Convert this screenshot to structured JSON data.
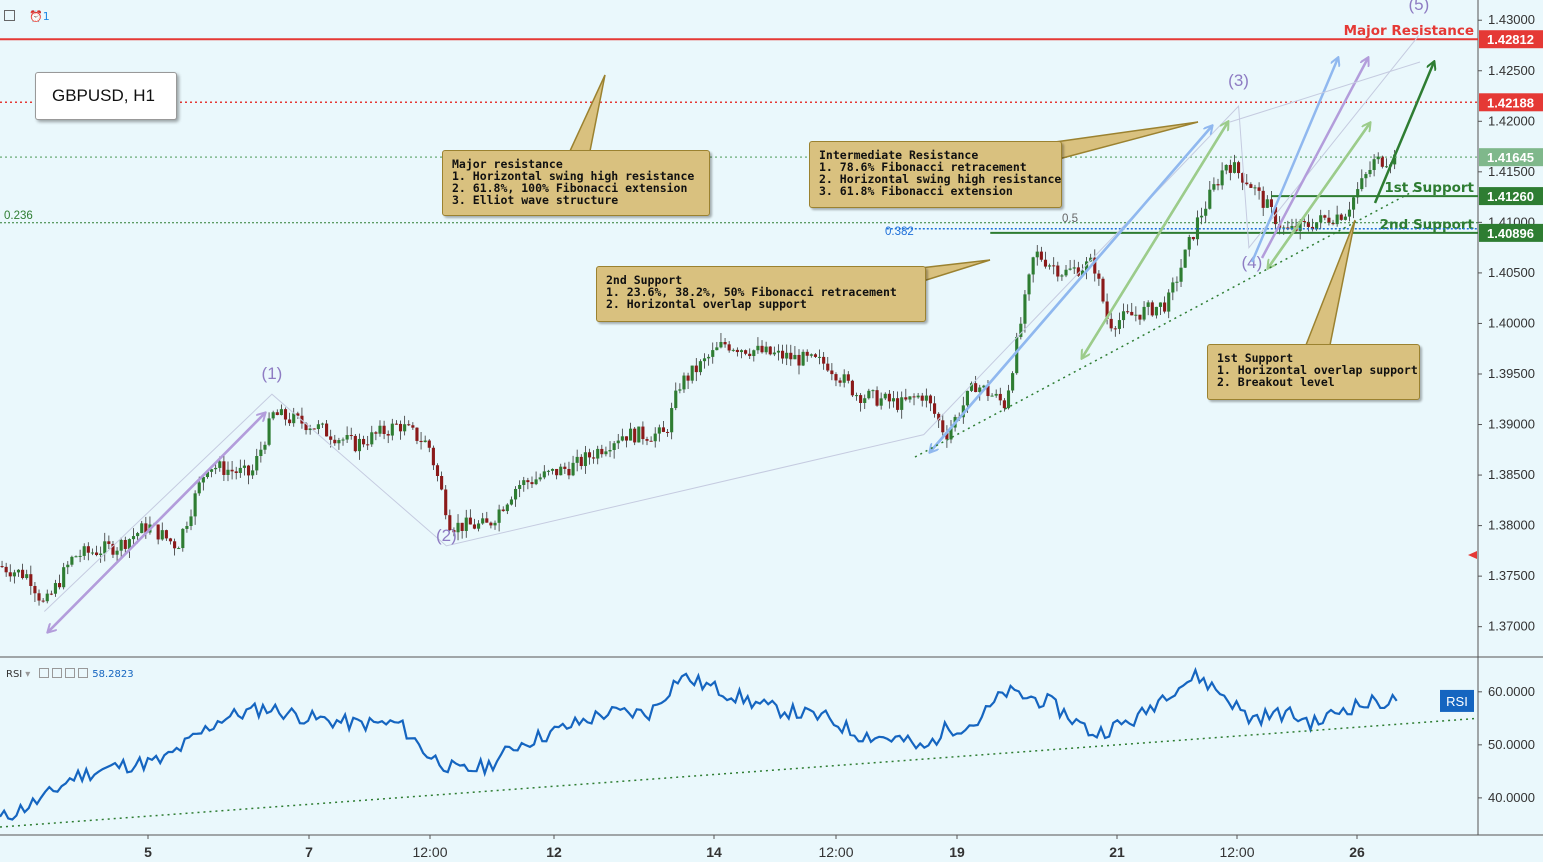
{
  "toolbar": {
    "alert_count": "1"
  },
  "symbol_label": "GBPUSD, H1",
  "notes": {
    "major": "Major resistance\n1. Horizontal swing high resistance\n2. 61.8%, 100% Fibonacci extension\n3. Elliot wave structure",
    "intermediate": "Intermediate Resistance\n1. 78.6% Fibonacci retracement\n2. Horizontal swing high resistance\n3. 61.8% Fibonacci extension",
    "second": "2nd Support\n1. 23.6%, 38.2%, 50% Fibonacci retracement\n2. Horizontal overlap support",
    "first": "1st Support\n1. Horizontal overlap support\n2. Breakout level"
  },
  "rsi_header": {
    "name": "RSI",
    "value": "58.2823"
  },
  "chart_data": {
    "type": "candlestick",
    "x_tick_labels": [
      "5",
      "7",
      "12:00",
      "12",
      "14",
      "12:00",
      "19",
      "21",
      "12:00",
      "26"
    ],
    "price_axis": {
      "ylim": [
        1.367,
        1.432
      ],
      "tick_labels": [
        "1.43000",
        "1.42500",
        "1.42000",
        "1.41500",
        "1.41000",
        "1.40500",
        "1.40000",
        "1.39500",
        "1.39000",
        "1.38500",
        "1.38000",
        "1.37500",
        "1.37000"
      ]
    },
    "levels": [
      {
        "name": "Major Resistance",
        "value": 1.42812,
        "label": "1.42812",
        "color": "#e53935",
        "style": "solid"
      },
      {
        "name": "",
        "value": 1.42188,
        "label": "1.42188",
        "color": "#e53935",
        "style": "dotted"
      },
      {
        "name": "",
        "value": 1.41645,
        "label": "1.41645",
        "color": "#7fb88b",
        "style": "dotted"
      },
      {
        "name": "1st Support",
        "value": 1.4126,
        "label": "1.41260",
        "color": "#2e7d32",
        "style": "solid"
      },
      {
        "name": "2nd Support",
        "value": 1.40896,
        "label": "1.40896",
        "color": "#2e7d32",
        "style": "solid"
      }
    ],
    "fibonacci": [
      {
        "label": "0.236",
        "value": 1.40996
      },
      {
        "label": "0.382",
        "value": 1.40996
      },
      {
        "label": "0.5",
        "value": 1.41
      }
    ],
    "wave_labels": [
      {
        "label": "(1)",
        "x": 0.184,
        "value": 1.3945
      },
      {
        "label": "(2)",
        "x": 0.302,
        "value": 1.3785
      },
      {
        "label": "(3)",
        "x": 0.838,
        "value": 1.4235
      },
      {
        "label": "(4)",
        "x": 0.847,
        "value": 1.4055
      },
      {
        "label": "(5)",
        "x": 0.96,
        "value": 1.431
      }
    ],
    "waypoints": [
      [
        0.0,
        1.376
      ],
      [
        0.02,
        1.375
      ],
      [
        0.03,
        1.372
      ],
      [
        0.05,
        1.377
      ],
      [
        0.08,
        1.378
      ],
      [
        0.1,
        1.38
      ],
      [
        0.12,
        1.378
      ],
      [
        0.14,
        1.386
      ],
      [
        0.17,
        1.385
      ],
      [
        0.185,
        1.391
      ],
      [
        0.21,
        1.39
      ],
      [
        0.24,
        1.388
      ],
      [
        0.27,
        1.39
      ],
      [
        0.29,
        1.388
      ],
      [
        0.305,
        1.38
      ],
      [
        0.33,
        1.38
      ],
      [
        0.35,
        1.384
      ],
      [
        0.39,
        1.386
      ],
      [
        0.42,
        1.389
      ],
      [
        0.45,
        1.389
      ],
      [
        0.46,
        1.394
      ],
      [
        0.49,
        1.398
      ],
      [
        0.52,
        1.397
      ],
      [
        0.56,
        1.396
      ],
      [
        0.58,
        1.393
      ],
      [
        0.61,
        1.392
      ],
      [
        0.625,
        1.393
      ],
      [
        0.64,
        1.389
      ],
      [
        0.66,
        1.394
      ],
      [
        0.68,
        1.392
      ],
      [
        0.7,
        1.407
      ],
      [
        0.72,
        1.405
      ],
      [
        0.74,
        1.406
      ],
      [
        0.75,
        1.4
      ],
      [
        0.77,
        1.401
      ],
      [
        0.79,
        1.402
      ],
      [
        0.81,
        1.41
      ],
      [
        0.83,
        1.416
      ],
      [
        0.845,
        1.414
      ],
      [
        0.87,
        1.409
      ],
      [
        0.89,
        1.41
      ],
      [
        0.91,
        1.411
      ],
      [
        0.93,
        1.416
      ],
      [
        0.945,
        1.4165
      ]
    ],
    "rsi": {
      "name": "RSI",
      "ylim": [
        33,
        66
      ],
      "tick_labels": [
        "60.0000",
        "50.0000",
        "40.0000"
      ],
      "last_value": 58.2823,
      "waypoints": [
        [
          0.0,
          36
        ],
        [
          0.03,
          40
        ],
        [
          0.05,
          44
        ],
        [
          0.08,
          46
        ],
        [
          0.11,
          47
        ],
        [
          0.13,
          51
        ],
        [
          0.15,
          55
        ],
        [
          0.18,
          57
        ],
        [
          0.21,
          55
        ],
        [
          0.24,
          54
        ],
        [
          0.27,
          54
        ],
        [
          0.29,
          48
        ],
        [
          0.31,
          45
        ],
        [
          0.33,
          46
        ],
        [
          0.35,
          50
        ],
        [
          0.38,
          53
        ],
        [
          0.41,
          56
        ],
        [
          0.44,
          56
        ],
        [
          0.46,
          63
        ],
        [
          0.49,
          60
        ],
        [
          0.52,
          57
        ],
        [
          0.56,
          55
        ],
        [
          0.58,
          52
        ],
        [
          0.61,
          51
        ],
        [
          0.625,
          49
        ],
        [
          0.64,
          53
        ],
        [
          0.66,
          54
        ],
        [
          0.68,
          60
        ],
        [
          0.71,
          58
        ],
        [
          0.74,
          52
        ],
        [
          0.77,
          55
        ],
        [
          0.79,
          60
        ],
        [
          0.81,
          63
        ],
        [
          0.83,
          59
        ],
        [
          0.845,
          55
        ],
        [
          0.87,
          56
        ],
        [
          0.89,
          54
        ],
        [
          0.91,
          57
        ],
        [
          0.93,
          58
        ],
        [
          0.945,
          58.3
        ]
      ]
    }
  }
}
